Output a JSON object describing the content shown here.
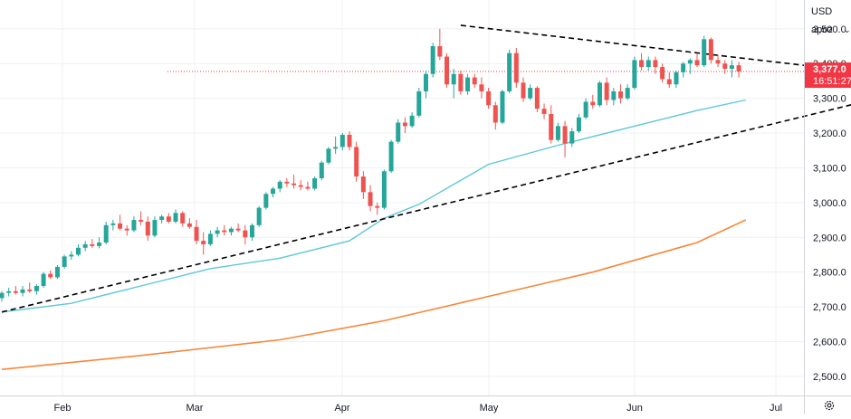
{
  "header": {
    "currency": "USD",
    "unit": "apoz"
  },
  "last_price": {
    "price": "3,377.0",
    "countdown": "16:51:27",
    "color": "#f23645"
  },
  "colors": {
    "up": "#26a69a",
    "down": "#ef5350",
    "ma_short": "#5bc8d8",
    "ma_long": "#f7873a",
    "trendline": "#000000",
    "grid": "#eef0f3"
  },
  "icons": {
    "settings": "gear-icon",
    "dropdown": "chevron-down-icon"
  },
  "chart_data": {
    "type": "candlestick",
    "x_tick_labels": [
      "Feb",
      "Mar",
      "Apr",
      "May",
      "Jun",
      "Jul"
    ],
    "y_tick_labels": [
      "2,500.0",
      "2,600.0",
      "2,700.0",
      "2,800.0",
      "2,900.0",
      "3,000.0",
      "3,100.0",
      "3,200.0",
      "3,300.0",
      "3,400.0",
      "3,500.0"
    ],
    "ylim": [
      2445,
      3562
    ],
    "grid": true,
    "candles": [
      [
        2725,
        2745,
        2715,
        2740
      ],
      [
        2740,
        2755,
        2730,
        2745
      ],
      [
        2745,
        2760,
        2735,
        2740
      ],
      [
        2740,
        2760,
        2730,
        2750
      ],
      [
        2750,
        2770,
        2740,
        2745
      ],
      [
        2745,
        2765,
        2735,
        2760
      ],
      [
        2760,
        2800,
        2755,
        2795
      ],
      [
        2795,
        2805,
        2780,
        2785
      ],
      [
        2785,
        2820,
        2780,
        2815
      ],
      [
        2815,
        2850,
        2810,
        2845
      ],
      [
        2845,
        2860,
        2835,
        2850
      ],
      [
        2850,
        2880,
        2845,
        2870
      ],
      [
        2870,
        2890,
        2860,
        2880
      ],
      [
        2880,
        2895,
        2870,
        2875
      ],
      [
        2875,
        2900,
        2868,
        2885
      ],
      [
        2885,
        2945,
        2880,
        2935
      ],
      [
        2935,
        2950,
        2920,
        2940
      ],
      [
        2940,
        2965,
        2920,
        2925
      ],
      [
        2925,
        2935,
        2905,
        2920
      ],
      [
        2920,
        2960,
        2915,
        2950
      ],
      [
        2950,
        2975,
        2935,
        2945
      ],
      [
        2945,
        2960,
        2890,
        2905
      ],
      [
        2905,
        2960,
        2900,
        2950
      ],
      [
        2950,
        2965,
        2940,
        2960
      ],
      [
        2960,
        2970,
        2940,
        2945
      ],
      [
        2945,
        2980,
        2940,
        2970
      ],
      [
        2970,
        2975,
        2930,
        2940
      ],
      [
        2940,
        2955,
        2925,
        2930
      ],
      [
        2930,
        2950,
        2880,
        2890
      ],
      [
        2890,
        2915,
        2850,
        2880
      ],
      [
        2880,
        2920,
        2875,
        2910
      ],
      [
        2910,
        2930,
        2900,
        2920
      ],
      [
        2920,
        2935,
        2905,
        2915
      ],
      [
        2915,
        2930,
        2905,
        2925
      ],
      [
        2925,
        2940,
        2915,
        2920
      ],
      [
        2920,
        2935,
        2880,
        2900
      ],
      [
        2900,
        2940,
        2890,
        2935
      ],
      [
        2935,
        2990,
        2930,
        2985
      ],
      [
        2985,
        3030,
        2980,
        3025
      ],
      [
        3025,
        3045,
        3015,
        3040
      ],
      [
        3040,
        3065,
        3030,
        3060
      ],
      [
        3060,
        3070,
        3045,
        3055
      ],
      [
        3055,
        3080,
        3040,
        3050
      ],
      [
        3050,
        3065,
        3035,
        3045
      ],
      [
        3045,
        3060,
        3035,
        3040
      ],
      [
        3040,
        3075,
        3035,
        3070
      ],
      [
        3070,
        3120,
        3065,
        3115
      ],
      [
        3115,
        3160,
        3110,
        3155
      ],
      [
        3155,
        3190,
        3140,
        3160
      ],
      [
        3160,
        3200,
        3150,
        3195
      ],
      [
        3195,
        3205,
        3150,
        3160
      ],
      [
        3160,
        3175,
        3060,
        3075
      ],
      [
        3075,
        3090,
        3010,
        3030
      ],
      [
        3030,
        3050,
        2975,
        2990
      ],
      [
        2990,
        3000,
        2965,
        2985
      ],
      [
        2985,
        3095,
        2980,
        3090
      ],
      [
        3090,
        3180,
        3085,
        3175
      ],
      [
        3175,
        3240,
        3170,
        3230
      ],
      [
        3230,
        3245,
        3200,
        3220
      ],
      [
        3220,
        3260,
        3215,
        3250
      ],
      [
        3250,
        3330,
        3245,
        3320
      ],
      [
        3320,
        3380,
        3300,
        3370
      ],
      [
        3370,
        3460,
        3360,
        3450
      ],
      [
        3450,
        3500,
        3410,
        3420
      ],
      [
        3420,
        3430,
        3330,
        3340
      ],
      [
        3340,
        3385,
        3300,
        3370
      ],
      [
        3370,
        3380,
        3310,
        3320
      ],
      [
        3320,
        3370,
        3310,
        3360
      ],
      [
        3360,
        3370,
        3330,
        3340
      ],
      [
        3340,
        3360,
        3300,
        3320
      ],
      [
        3320,
        3330,
        3270,
        3280
      ],
      [
        3280,
        3290,
        3210,
        3230
      ],
      [
        3230,
        3325,
        3225,
        3320
      ],
      [
        3320,
        3440,
        3315,
        3430
      ],
      [
        3430,
        3445,
        3330,
        3345
      ],
      [
        3345,
        3360,
        3290,
        3300
      ],
      [
        3300,
        3340,
        3295,
        3330
      ],
      [
        3330,
        3335,
        3260,
        3270
      ],
      [
        3270,
        3285,
        3240,
        3255
      ],
      [
        3255,
        3280,
        3170,
        3180
      ],
      [
        3180,
        3230,
        3175,
        3220
      ],
      [
        3220,
        3235,
        3130,
        3170
      ],
      [
        3170,
        3215,
        3160,
        3205
      ],
      [
        3205,
        3255,
        3200,
        3245
      ],
      [
        3245,
        3300,
        3240,
        3290
      ],
      [
        3290,
        3310,
        3270,
        3280
      ],
      [
        3280,
        3350,
        3275,
        3345
      ],
      [
        3345,
        3360,
        3280,
        3295
      ],
      [
        3295,
        3330,
        3280,
        3320
      ],
      [
        3320,
        3340,
        3285,
        3300
      ],
      [
        3300,
        3340,
        3295,
        3330
      ],
      [
        3330,
        3420,
        3325,
        3410
      ],
      [
        3410,
        3430,
        3380,
        3390
      ],
      [
        3390,
        3420,
        3380,
        3410
      ],
      [
        3410,
        3420,
        3370,
        3390
      ],
      [
        3390,
        3400,
        3345,
        3355
      ],
      [
        3355,
        3375,
        3330,
        3340
      ],
      [
        3340,
        3380,
        3330,
        3375
      ],
      [
        3375,
        3405,
        3360,
        3400
      ],
      [
        3400,
        3415,
        3370,
        3410
      ],
      [
        3410,
        3430,
        3390,
        3395
      ],
      [
        3395,
        3480,
        3390,
        3470
      ],
      [
        3470,
        3475,
        3400,
        3410
      ],
      [
        3410,
        3425,
        3390,
        3400
      ],
      [
        3400,
        3410,
        3370,
        3385
      ],
      [
        3385,
        3410,
        3360,
        3395
      ],
      [
        3395,
        3405,
        3360,
        3377
      ]
    ],
    "ma_short": [
      [
        0,
        2685
      ],
      [
        10,
        2710
      ],
      [
        20,
        2760
      ],
      [
        30,
        2810
      ],
      [
        40,
        2840
      ],
      [
        50,
        2890
      ],
      [
        55,
        2955
      ],
      [
        60,
        2995
      ],
      [
        70,
        3110
      ],
      [
        80,
        3165
      ],
      [
        90,
        3215
      ],
      [
        100,
        3265
      ],
      [
        107,
        3295
      ]
    ],
    "ma_long": [
      [
        0,
        2520
      ],
      [
        20,
        2560
      ],
      [
        40,
        2605
      ],
      [
        55,
        2660
      ],
      [
        70,
        2730
      ],
      [
        85,
        2800
      ],
      [
        100,
        2885
      ],
      [
        107,
        2950
      ]
    ],
    "trendlines": [
      {
        "style": "dashed",
        "from": [
          0,
          2685
        ],
        "to": [
          126,
          3300
        ]
      },
      {
        "style": "dashed",
        "from": [
          66,
          3510
        ],
        "to": [
          126,
          3370
        ]
      }
    ],
    "last_price_line": 3377
  }
}
